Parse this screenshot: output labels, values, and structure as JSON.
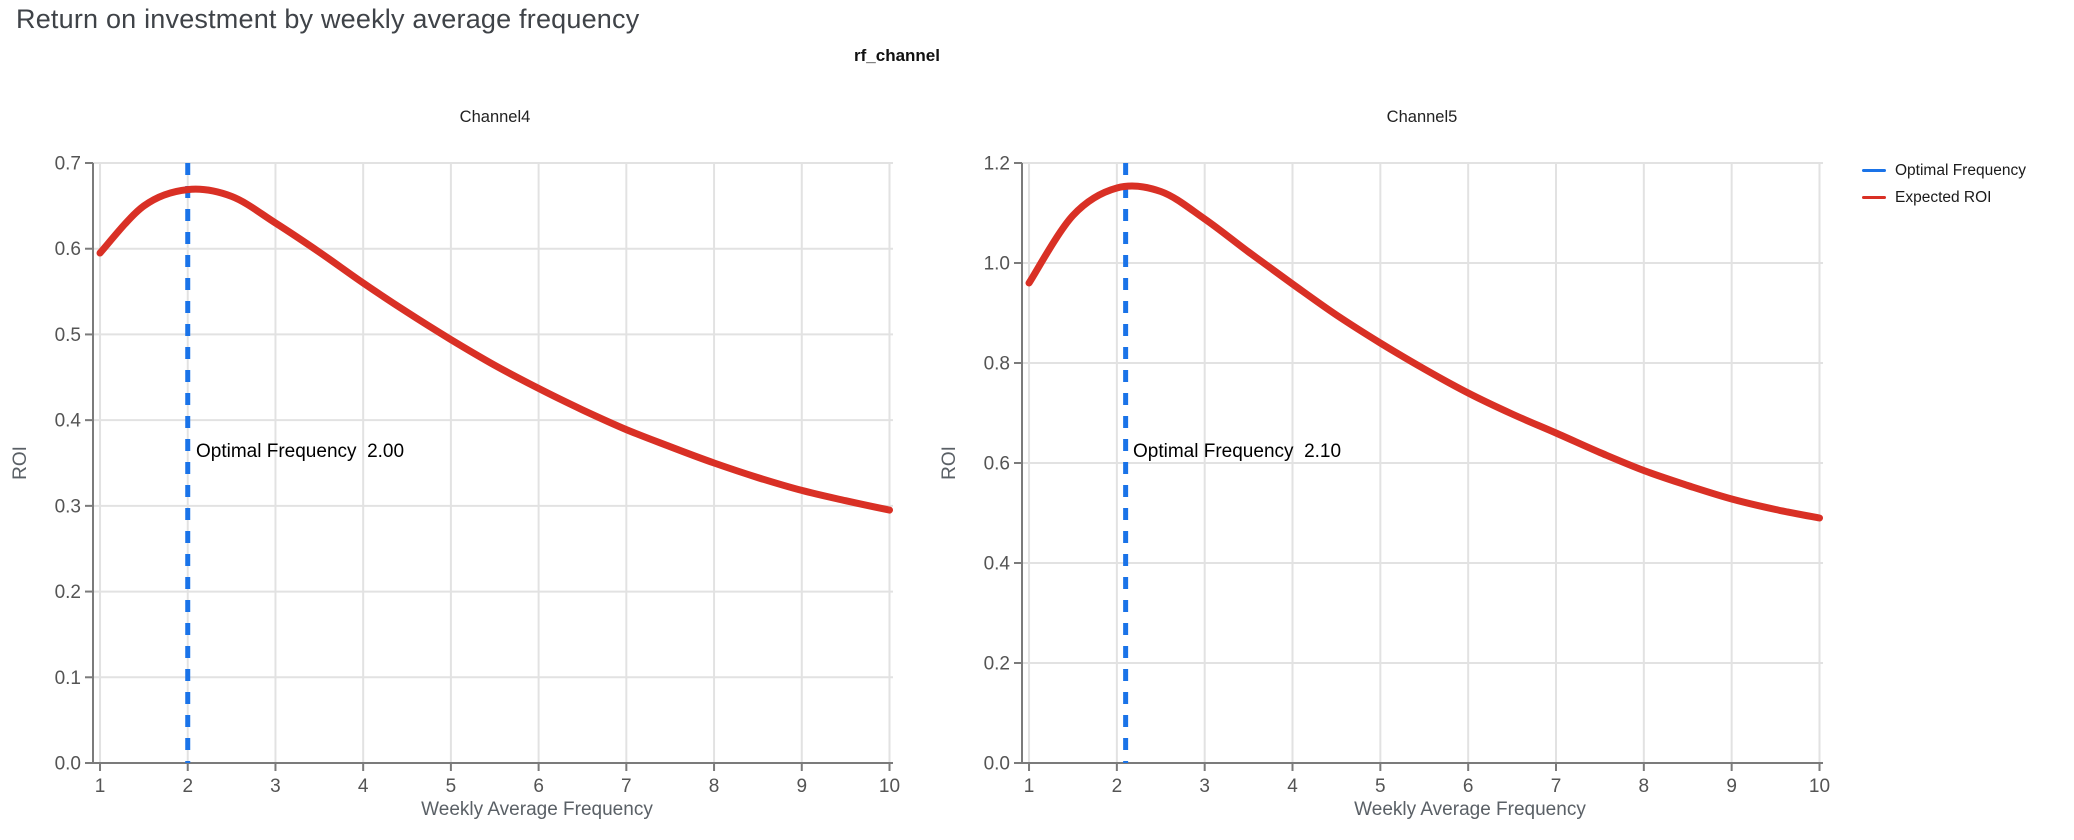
{
  "page_title": "Return on investment by weekly average frequency",
  "facet_title": "rf_channel",
  "legend": {
    "items": [
      {
        "label": "Optimal Frequency",
        "color": "#1a73e8"
      },
      {
        "label": "Expected ROI",
        "color": "#d93025"
      }
    ]
  },
  "colors": {
    "optimal_frequency_line": "#1a73e8",
    "expected_roi_line": "#d93025",
    "grid": "#e2e2e2",
    "axis": "#7b7b7b",
    "tick_label": "#545454"
  },
  "chart_data": [
    {
      "type": "line",
      "title": "Channel4",
      "xlabel": "Weekly Average Frequency",
      "ylabel": "ROI",
      "xlim": [
        1,
        10
      ],
      "ylim": [
        0.0,
        0.7
      ],
      "grid": true,
      "xticks": [
        1,
        2,
        3,
        4,
        5,
        6,
        7,
        8,
        9,
        10
      ],
      "yticks": [
        "0.0",
        "0.1",
        "0.2",
        "0.3",
        "0.4",
        "0.5",
        "0.6",
        "0.7"
      ],
      "optimal_frequency": 2.0,
      "annotation": "Optimal Frequency  2.00",
      "series": [
        {
          "name": "Expected ROI",
          "x": [
            1,
            1.5,
            2,
            2.5,
            3,
            3.5,
            4,
            4.5,
            5,
            5.5,
            6,
            6.5,
            7,
            7.5,
            8,
            8.5,
            9,
            9.5,
            10
          ],
          "y": [
            0.595,
            0.65,
            0.669,
            0.661,
            0.63,
            0.596,
            0.56,
            0.526,
            0.494,
            0.464,
            0.437,
            0.412,
            0.389,
            0.369,
            0.35,
            0.333,
            0.318,
            0.306,
            0.295
          ]
        }
      ]
    },
    {
      "type": "line",
      "title": "Channel5",
      "xlabel": "Weekly Average Frequency",
      "ylabel": "ROI",
      "xlim": [
        1,
        10
      ],
      "ylim": [
        0.0,
        1.2
      ],
      "grid": true,
      "xticks": [
        1,
        2,
        3,
        4,
        5,
        6,
        7,
        8,
        9,
        10
      ],
      "yticks": [
        "0.0",
        "0.2",
        "0.4",
        "0.6",
        "0.8",
        "1.0",
        "1.2"
      ],
      "optimal_frequency": 2.1,
      "annotation": "Optimal Frequency  2.10",
      "series": [
        {
          "name": "Expected ROI",
          "x": [
            1,
            1.5,
            2,
            2.5,
            3,
            3.5,
            4,
            4.5,
            5,
            5.5,
            6,
            6.5,
            7,
            7.5,
            8,
            8.5,
            9,
            9.5,
            10
          ],
          "y": [
            0.96,
            1.095,
            1.15,
            1.143,
            1.088,
            1.022,
            0.958,
            0.896,
            0.84,
            0.788,
            0.74,
            0.698,
            0.66,
            0.621,
            0.585,
            0.555,
            0.528,
            0.507,
            0.49
          ]
        }
      ]
    }
  ]
}
